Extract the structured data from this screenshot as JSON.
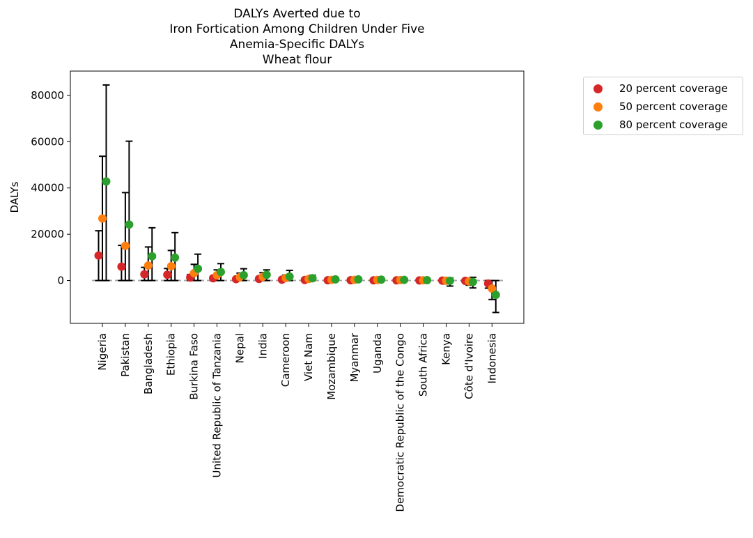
{
  "chart_data": {
    "type": "scatter",
    "title_lines": [
      "DALYs Averted due to",
      "Iron Fortication Among Children Under Five",
      "Anemia-Specific DALYs",
      "Wheat flour"
    ],
    "xlabel": "",
    "ylabel": "DALYs",
    "ylim": [
      -18500,
      90500
    ],
    "yticks": [
      0,
      20000,
      40000,
      60000,
      80000
    ],
    "ytick_labels": [
      "0",
      "20000",
      "40000",
      "60000",
      "80000"
    ],
    "grid": false,
    "legend_placement": "outside-top-right",
    "reference_line": 0,
    "categories": [
      "Nigeria",
      "Pakistan",
      "Bangladesh",
      "Ethiopia",
      "Burkina Faso",
      "United Republic of Tanzania",
      "Nepal",
      "India",
      "Cameroon",
      "Viet Nam",
      "Mozambique",
      "Myanmar",
      "Uganda",
      "Democratic Republic of the Congo",
      "South Africa",
      "Kenya",
      "Côte d'Ivoire",
      "Indonesia"
    ],
    "series": [
      {
        "name": "20 percent coverage",
        "color": "#d62728",
        "values": [
          10800,
          6000,
          2700,
          2500,
          1300,
          1000,
          600,
          700,
          400,
          250,
          120,
          120,
          100,
          80,
          40,
          -20,
          -150,
          -1300
        ],
        "lower": [
          0,
          0,
          0,
          0,
          0,
          0,
          0,
          0,
          0,
          0,
          0,
          0,
          0,
          0,
          0,
          -600,
          -800,
          -3300
        ],
        "upper": [
          21500,
          15200,
          5700,
          5200,
          2600,
          1900,
          1200,
          1500,
          900,
          500,
          300,
          250,
          250,
          200,
          100,
          300,
          400,
          0
        ]
      },
      {
        "name": "50 percent coverage",
        "color": "#ff7f0e",
        "values": [
          26800,
          15000,
          6500,
          6200,
          3200,
          2300,
          1500,
          1600,
          1100,
          650,
          300,
          300,
          250,
          200,
          100,
          -50,
          -400,
          -3500
        ],
        "lower": [
          0,
          0,
          0,
          0,
          0,
          0,
          0,
          0,
          0,
          0,
          0,
          0,
          0,
          0,
          0,
          -1500,
          -2000,
          -8200
        ],
        "upper": [
          53700,
          38000,
          14500,
          13000,
          7000,
          4600,
          3200,
          3400,
          2400,
          1200,
          700,
          600,
          600,
          500,
          200,
          700,
          900,
          0
        ]
      },
      {
        "name": "80 percent coverage",
        "color": "#2ca02c",
        "values": [
          42800,
          24200,
          10500,
          9900,
          5100,
          3700,
          2300,
          2500,
          1700,
          1000,
          500,
          500,
          400,
          300,
          150,
          -100,
          -600,
          -6200
        ],
        "lower": [
          0,
          0,
          0,
          0,
          0,
          0,
          0,
          0,
          0,
          0,
          0,
          0,
          0,
          0,
          0,
          -2400,
          -3200,
          -13800
        ],
        "upper": [
          84500,
          60200,
          22800,
          20700,
          11400,
          7300,
          5100,
          4600,
          4400,
          2300,
          1200,
          1000,
          1000,
          800,
          400,
          1100,
          1400,
          0
        ]
      }
    ]
  }
}
